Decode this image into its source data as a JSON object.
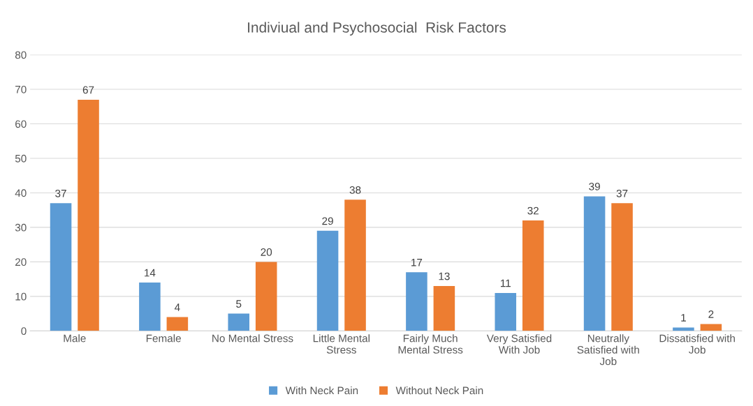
{
  "chart_data": {
    "type": "bar",
    "title": "Indiviual and Psychosocial  Risk Factors",
    "categories": [
      "Male",
      "Female",
      "No Mental Stress",
      "Little Mental Stress",
      "Fairly Much Mental Stress",
      "Very Satisfied With Job",
      "Neutrally Satisfied with Job",
      "Dissatisfied with Job"
    ],
    "series": [
      {
        "name": "With Neck Pain",
        "color": "#5b9bd5",
        "values": [
          37,
          14,
          5,
          29,
          17,
          11,
          39,
          1
        ]
      },
      {
        "name": "Without Neck Pain",
        "color": "#ed7d31",
        "values": [
          67,
          4,
          20,
          38,
          13,
          32,
          37,
          2
        ]
      }
    ],
    "ylim": [
      0,
      80
    ],
    "yticks": [
      0,
      10,
      20,
      30,
      40,
      50,
      60,
      70,
      80
    ],
    "grid": "y",
    "legend": "bottom",
    "data_labels": true
  }
}
